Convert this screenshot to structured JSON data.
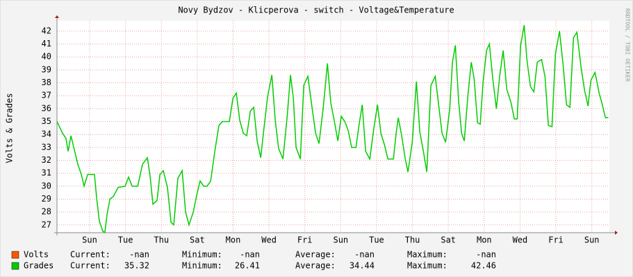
{
  "chart_data": {
    "type": "line",
    "title": "Novy Bydzov - Klicperova - switch - Voltage&Temperature",
    "y_label": "Volts & Grades",
    "watermark": "RRDTOOL / TOBI OETIKER",
    "xlim": [
      0,
      30.8
    ],
    "xticks": [
      {
        "value": 1.82,
        "label": "Sun"
      },
      {
        "value": 3.82,
        "label": "Tue"
      },
      {
        "value": 5.82,
        "label": "Thu"
      },
      {
        "value": 7.82,
        "label": "Sat"
      },
      {
        "value": 9.82,
        "label": "Mon"
      },
      {
        "value": 11.82,
        "label": "Wed"
      },
      {
        "value": 13.82,
        "label": "Fri"
      },
      {
        "value": 15.82,
        "label": "Sun"
      },
      {
        "value": 17.82,
        "label": "Tue"
      },
      {
        "value": 19.82,
        "label": "Thu"
      },
      {
        "value": 21.82,
        "label": "Sat"
      },
      {
        "value": 23.82,
        "label": "Mon"
      },
      {
        "value": 25.82,
        "label": "Wed"
      },
      {
        "value": 27.82,
        "label": "Fri"
      },
      {
        "value": 29.82,
        "label": "Sun"
      }
    ],
    "ylim": [
      26.4,
      42.8
    ],
    "yticks": [
      27,
      28,
      29,
      30,
      31,
      32,
      33,
      34,
      35,
      36,
      37,
      38,
      39,
      40,
      41,
      42
    ],
    "grid": true,
    "x": [
      0,
      0.31,
      0.5,
      0.62,
      0.78,
      0.97,
      1.16,
      1.36,
      1.51,
      1.71,
      2.09,
      2.21,
      2.36,
      2.56,
      2.67,
      2.79,
      2.95,
      3.14,
      3.41,
      3.8,
      3.99,
      4.19,
      4.5,
      4.77,
      5.04,
      5.19,
      5.35,
      5.58,
      5.74,
      5.93,
      6.16,
      6.36,
      6.51,
      6.74,
      6.98,
      7.17,
      7.36,
      7.6,
      7.79,
      7.98,
      8.18,
      8.37,
      8.57,
      8.8,
      9.03,
      9.22,
      9.61,
      9.81,
      10.0,
      10.19,
      10.39,
      10.58,
      10.78,
      10.97,
      11.16,
      11.36,
      11.51,
      11.74,
      11.98,
      12.17,
      12.36,
      12.6,
      12.83,
      13.02,
      13.18,
      13.33,
      13.57,
      13.76,
      13.99,
      14.22,
      14.42,
      14.61,
      14.84,
      15.08,
      15.27,
      15.47,
      15.66,
      15.85,
      16.05,
      16.24,
      16.43,
      16.67,
      16.86,
      17.02,
      17.21,
      17.44,
      17.67,
      17.87,
      18.06,
      18.26,
      18.45,
      18.76,
      18.91,
      19.03,
      19.22,
      19.42,
      19.57,
      19.81,
      20.04,
      20.23,
      20.43,
      20.62,
      20.85,
      21.09,
      21.28,
      21.47,
      21.67,
      21.9,
      22.05,
      22.21,
      22.4,
      22.56,
      22.71,
      22.91,
      23.1,
      23.26,
      23.45,
      23.6,
      23.76,
      23.95,
      24.11,
      24.3,
      24.5,
      24.69,
      24.88,
      25.08,
      25.31,
      25.5,
      25.66,
      25.85,
      26.05,
      26.2,
      26.4,
      26.59,
      26.78,
      27.02,
      27.21,
      27.4,
      27.6,
      27.79,
      28.02,
      28.22,
      28.41,
      28.6,
      28.8,
      28.99,
      29.22,
      29.42,
      29.61,
      29.77,
      30.0,
      30.23,
      30.39,
      30.58,
      30.74
    ],
    "stat_labels": [
      "Current:",
      "Minimum:",
      "Average:",
      "Maximum:"
    ],
    "series": [
      {
        "name": "Volts",
        "color": "#ff5500",
        "stats": [
          "-nan",
          "-nan",
          "-nan",
          "-nan"
        ]
      },
      {
        "name": "Grades",
        "color": "#00cc00",
        "stats": [
          35.32,
          26.41,
          34.44,
          42.46
        ],
        "values": [
          35.0,
          34.1,
          33.7,
          32.7,
          33.9,
          32.8,
          31.7,
          30.9,
          30.0,
          30.9,
          30.9,
          29.1,
          27.3,
          26.5,
          26.41,
          27.8,
          29.0,
          29.2,
          29.9,
          30.0,
          30.7,
          30.0,
          30.0,
          31.7,
          32.2,
          30.8,
          28.6,
          28.9,
          30.9,
          31.2,
          29.9,
          27.2,
          27.0,
          30.6,
          31.2,
          28.0,
          27.0,
          28.0,
          29.3,
          30.4,
          30.0,
          30.0,
          30.4,
          32.7,
          34.7,
          35.0,
          35.0,
          36.8,
          37.2,
          35.1,
          34.1,
          33.9,
          35.8,
          36.1,
          33.5,
          32.2,
          34.1,
          36.9,
          38.6,
          35.1,
          32.9,
          32.1,
          35.3,
          38.6,
          36.8,
          33.0,
          32.1,
          37.8,
          38.5,
          36.1,
          34.1,
          33.3,
          36.0,
          39.5,
          36.4,
          35.0,
          33.5,
          35.4,
          35.0,
          34.3,
          33.0,
          33.0,
          34.9,
          36.3,
          32.7,
          32.1,
          34.5,
          36.3,
          34.1,
          33.2,
          32.1,
          32.1,
          34.1,
          35.3,
          33.9,
          32.1,
          31.1,
          33.4,
          38.1,
          34.2,
          32.7,
          31.1,
          37.8,
          38.5,
          36.3,
          34.1,
          33.4,
          36.0,
          39.6,
          40.9,
          36.5,
          34.1,
          33.5,
          37.0,
          39.6,
          38.3,
          34.9,
          34.8,
          38.1,
          40.5,
          41.0,
          38.3,
          36.0,
          38.6,
          40.5,
          37.5,
          36.5,
          35.2,
          35.2,
          40.9,
          42.46,
          39.8,
          37.7,
          37.3,
          39.6,
          39.8,
          38.5,
          34.7,
          34.6,
          40.2,
          42.0,
          39.4,
          36.3,
          36.1,
          41.5,
          41.9,
          39.2,
          37.4,
          36.2,
          38.2,
          38.8,
          37.2,
          36.4,
          35.3,
          35.32
        ]
      }
    ]
  }
}
